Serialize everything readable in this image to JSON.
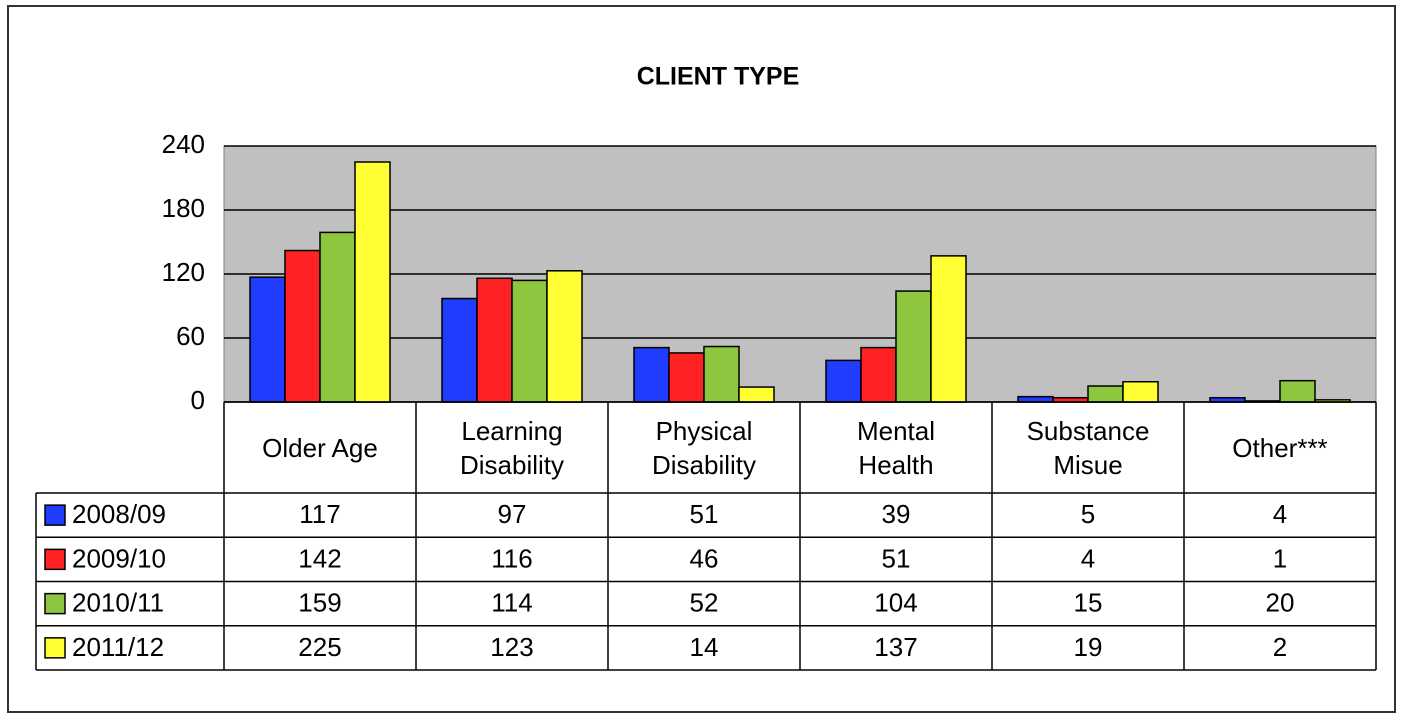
{
  "chart_data": {
    "type": "bar",
    "title": "CLIENT TYPE",
    "categories": [
      "Older Age",
      "Learning Disability",
      "Physical Disability",
      "Mental Health",
      "Substance Misue",
      "Other***"
    ],
    "series": [
      {
        "name": "2008/09",
        "color": "#1f3cff",
        "values": [
          117,
          97,
          51,
          39,
          5,
          4
        ]
      },
      {
        "name": "2009/10",
        "color": "#ff2222",
        "values": [
          142,
          116,
          46,
          51,
          4,
          1
        ]
      },
      {
        "name": "2010/11",
        "color": "#8dc63f",
        "values": [
          159,
          114,
          52,
          104,
          15,
          20
        ]
      },
      {
        "name": "2011/12",
        "color": "#ffff33",
        "values": [
          225,
          123,
          14,
          137,
          19,
          2
        ]
      }
    ],
    "ylim": [
      0,
      240
    ],
    "yticks": [
      0,
      60,
      120,
      180,
      240
    ],
    "grid": true
  }
}
